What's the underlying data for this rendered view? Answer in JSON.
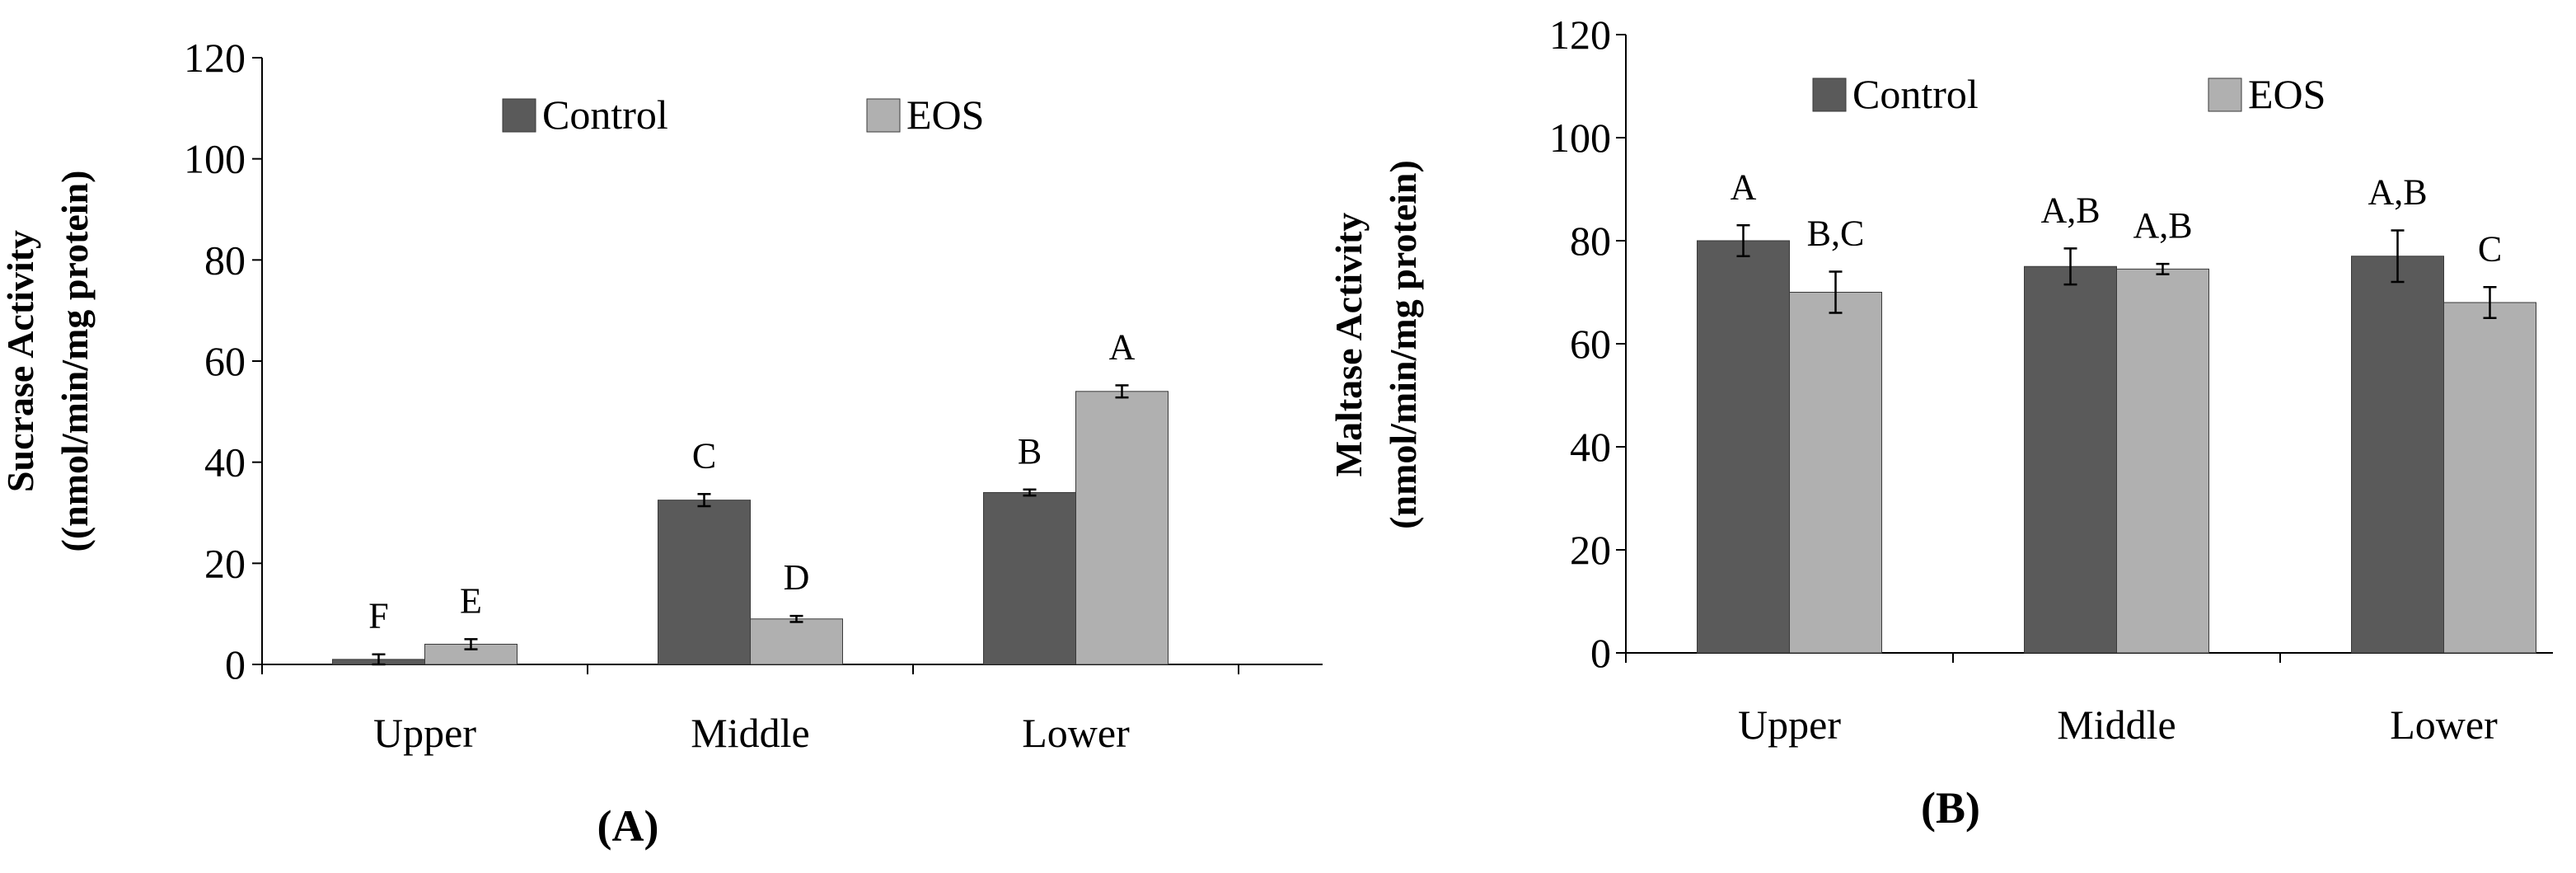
{
  "chart_data": [
    {
      "type": "bar",
      "panel_label": "(A)",
      "categories": [
        "Upper",
        "Middle",
        "Lower"
      ],
      "ylabel_line1": "Sucrase Activity",
      "ylabel_line2": "((nmol/min/mg protein)",
      "ylim": [
        0,
        120
      ],
      "yticks": [
        0,
        20,
        40,
        60,
        80,
        100,
        120
      ],
      "legend_position": "top-center",
      "series": [
        {
          "name": "Control",
          "color": "#5a5a5a",
          "values": [
            1,
            32.5,
            34
          ],
          "errors": [
            1,
            1.2,
            0.6
          ],
          "labels": [
            "F",
            "C",
            "B"
          ]
        },
        {
          "name": "EOS",
          "color": "#b0b0b0",
          "values": [
            4,
            9,
            54
          ],
          "errors": [
            1,
            0.6,
            1.2
          ],
          "labels": [
            "E",
            "D",
            "A"
          ]
        }
      ]
    },
    {
      "type": "bar",
      "panel_label": "(B)",
      "categories": [
        "Upper",
        "Middle",
        "Lower"
      ],
      "ylabel_line1": "Maltase Activity",
      "ylabel_line2": "(nmol/min/mg protein)",
      "ylim": [
        0,
        120
      ],
      "yticks": [
        0,
        20,
        40,
        60,
        80,
        100,
        120
      ],
      "legend_position": "top-center",
      "series": [
        {
          "name": "Control",
          "color": "#5a5a5a",
          "values": [
            80,
            75,
            77
          ],
          "errors": [
            3,
            3.5,
            5
          ],
          "labels": [
            "A",
            "A,B",
            "A,B"
          ]
        },
        {
          "name": "EOS",
          "color": "#b0b0b0",
          "values": [
            70,
            74.5,
            68
          ],
          "errors": [
            4,
            1,
            3
          ],
          "labels": [
            "B,C",
            "A,B",
            "C"
          ]
        }
      ]
    }
  ]
}
